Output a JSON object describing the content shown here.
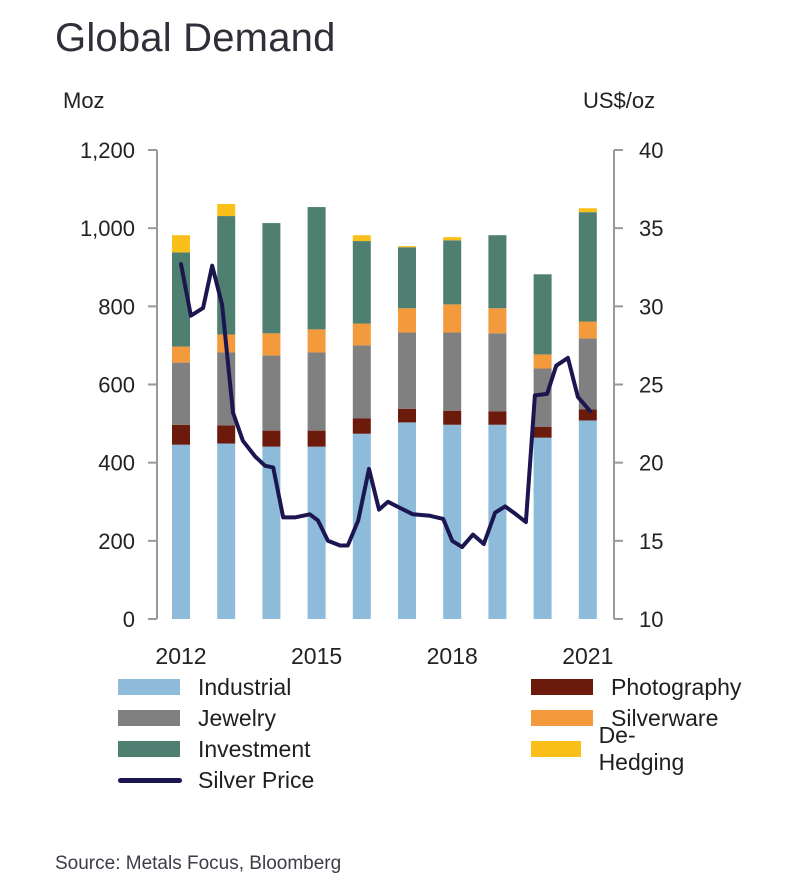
{
  "chart_data": {
    "type": "bar",
    "stacked": true,
    "title": "Global Demand",
    "ylabel": "Moz",
    "y2label": "US$/oz",
    "xlabel": "",
    "ylim": [
      0,
      1200
    ],
    "y2lim": [
      10,
      40
    ],
    "yticks": [
      "0",
      "200",
      "400",
      "600",
      "800",
      "1,000",
      "1,200"
    ],
    "ytick_values": [
      0,
      200,
      400,
      600,
      800,
      1000,
      1200
    ],
    "y2ticks": [
      "10",
      "15",
      "20",
      "25",
      "30",
      "35",
      "40"
    ],
    "y2tick_values": [
      10,
      15,
      20,
      25,
      30,
      35,
      40
    ],
    "categories": [
      "2012",
      "2013",
      "2014",
      "2015",
      "2016",
      "2017",
      "2018",
      "2019",
      "2020",
      "2021"
    ],
    "xtick_labels": [
      {
        "index": 0,
        "label": "2012"
      },
      {
        "index": 3,
        "label": "2015"
      },
      {
        "index": 6,
        "label": "2018"
      },
      {
        "index": 9,
        "label": "2021"
      }
    ],
    "grid": false,
    "legend_position": "bottom",
    "series": [
      {
        "name": "Industrial",
        "color": "#8dbbd9",
        "values": [
          446,
          449,
          441,
          441,
          474,
          503,
          497,
          497,
          464,
          508
        ]
      },
      {
        "name": "Photography",
        "color": "#6b1a0c",
        "values": [
          51,
          46,
          41,
          41,
          39,
          35,
          36,
          34,
          28,
          28
        ]
      },
      {
        "name": "Jewelry",
        "color": "#808080",
        "values": [
          159,
          187,
          192,
          200,
          187,
          195,
          200,
          200,
          149,
          182
        ]
      },
      {
        "name": "Silverware",
        "color": "#f39a3c",
        "values": [
          41,
          46,
          57,
          59,
          56,
          62,
          72,
          64,
          36,
          43
        ]
      },
      {
        "name": "Investment",
        "color": "#4f7f70",
        "values": [
          241,
          303,
          282,
          313,
          211,
          156,
          164,
          187,
          205,
          280
        ]
      },
      {
        "name": "De-Hedging",
        "color": "#fbbf1a",
        "values": [
          44,
          31,
          0,
          0,
          15,
          3,
          8,
          0,
          0,
          10
        ]
      }
    ],
    "line_series": {
      "name": "Silver Price",
      "color": "#1c1650",
      "axis": "right",
      "points": [
        [
          2012.0,
          32.7
        ],
        [
          2012.22,
          29.4
        ],
        [
          2012.49,
          29.9
        ],
        [
          2012.69,
          32.6
        ],
        [
          2012.91,
          30.1
        ],
        [
          2013.15,
          23.2
        ],
        [
          2013.37,
          21.4
        ],
        [
          2013.64,
          20.4
        ],
        [
          2013.86,
          19.8
        ],
        [
          2014.04,
          19.7
        ],
        [
          2014.26,
          16.5
        ],
        [
          2014.52,
          16.5
        ],
        [
          2014.85,
          16.7
        ],
        [
          2015.03,
          16.3
        ],
        [
          2015.25,
          15.0
        ],
        [
          2015.52,
          14.7
        ],
        [
          2015.69,
          14.7
        ],
        [
          2015.92,
          16.3
        ],
        [
          2016.16,
          19.6
        ],
        [
          2016.38,
          17.0
        ],
        [
          2016.58,
          17.5
        ],
        [
          2016.85,
          17.1
        ],
        [
          2017.13,
          16.7
        ],
        [
          2017.51,
          16.6
        ],
        [
          2017.8,
          16.4
        ],
        [
          2018.0,
          15.0
        ],
        [
          2018.22,
          14.6
        ],
        [
          2018.46,
          15.4
        ],
        [
          2018.7,
          14.8
        ],
        [
          2018.95,
          16.8
        ],
        [
          2019.17,
          17.2
        ],
        [
          2019.41,
          16.7
        ],
        [
          2019.63,
          16.2
        ],
        [
          2019.83,
          24.3
        ],
        [
          2020.1,
          24.4
        ],
        [
          2020.3,
          26.2
        ],
        [
          2020.56,
          26.7
        ],
        [
          2020.78,
          24.2
        ],
        [
          2021.05,
          23.3
        ]
      ]
    },
    "legend": [
      {
        "label": "Industrial",
        "color": "#8dbbd9",
        "kind": "bar"
      },
      {
        "label": "Photography",
        "color": "#6b1a0c",
        "kind": "bar"
      },
      {
        "label": "Jewelry",
        "color": "#808080",
        "kind": "bar"
      },
      {
        "label": "Silverware",
        "color": "#f39a3c",
        "kind": "bar"
      },
      {
        "label": "Investment",
        "color": "#4f7f70",
        "kind": "bar"
      },
      {
        "label": "De-Hedging",
        "color": "#fbbf1a",
        "kind": "bar"
      },
      {
        "label": "Silver Price",
        "color": "#1c1650",
        "kind": "line"
      }
    ],
    "source": "Source: Metals Focus, Bloomberg"
  }
}
